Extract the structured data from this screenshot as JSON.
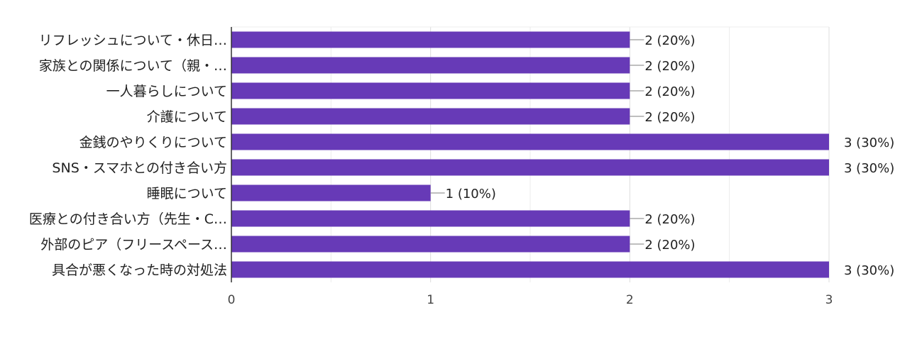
{
  "chart_data": {
    "type": "bar",
    "orientation": "horizontal",
    "categories": [
      "リフレッシュについて・休日…",
      "家族との関係について（親・…",
      "一人暮らしについて",
      "介護について",
      "金銭のやりくりについて",
      "SNS・スマホとの付き合い方",
      "睡眠について",
      "医療との付き合い方（先生・C…",
      "外部のピア（フリースペース…",
      "具合が悪くなった時の対処法"
    ],
    "values": [
      2,
      2,
      2,
      2,
      3,
      3,
      1,
      2,
      2,
      3
    ],
    "value_labels": [
      "2 (20%)",
      "2 (20%)",
      "2 (20%)",
      "2 (20%)",
      "3 (30%)",
      "3 (30%)",
      "1 (10%)",
      "2 (20%)",
      "2 (20%)",
      "3 (30%)"
    ],
    "xlim": [
      0,
      3
    ],
    "xticks": [
      0,
      1,
      2,
      3
    ],
    "xtick_labels": [
      "0",
      "1",
      "2",
      "3"
    ],
    "grid": true,
    "bar_color": "#673ab7",
    "title": "",
    "xlabel": "",
    "ylabel": ""
  }
}
